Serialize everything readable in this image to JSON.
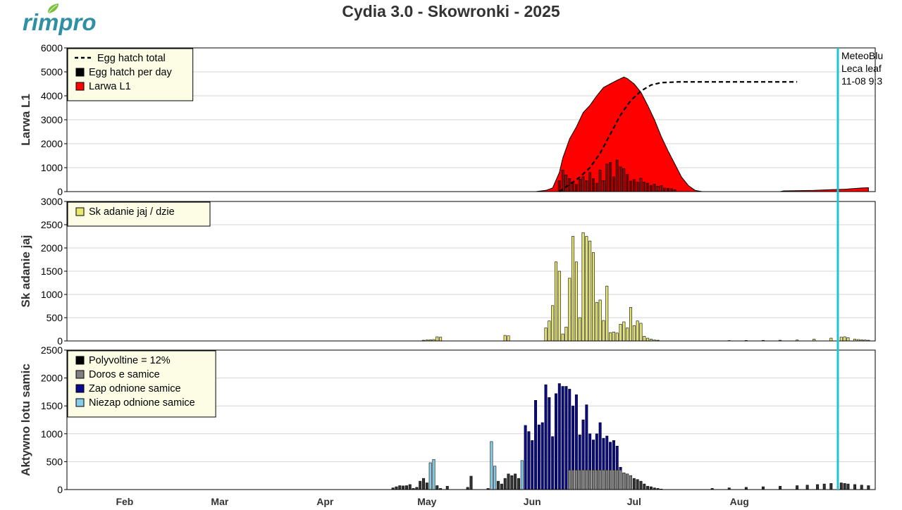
{
  "logo": {
    "text": "rimpro",
    "icon": "leaf-icon",
    "color": "#2f8fa3",
    "leaf_color": "#7cbf3a"
  },
  "title": "Cydia 3.0 - Skowronki - 2025",
  "annotation": {
    "lines": [
      "MeteoBlu",
      "Leca leaf",
      "11-08 9:3"
    ]
  },
  "months": [
    "Feb",
    "Mar",
    "Apr",
    "May",
    "Jun",
    "Jul",
    "Aug"
  ],
  "colors": {
    "larwa": "#ff0000",
    "hatch": "#000000",
    "egglaying": "#e8e870",
    "poly": "#000000",
    "doros": "#808080",
    "zap": "#0a0a8c",
    "niezap": "#87ceeb",
    "now_line": "#21c4d0",
    "grid": "#d4d4d4",
    "legend_bg": "#fdfde6"
  },
  "chart_data": [
    {
      "type": "area",
      "ylabel": "Larwa L1",
      "ylim": [
        0,
        6000
      ],
      "yticks": [
        0,
        1000,
        2000,
        3000,
        4000,
        5000,
        6000
      ],
      "legend": [
        {
          "label": "Egg hatch total",
          "style": "dashed-line"
        },
        {
          "label": "Egg hatch per day",
          "style": "box",
          "color": "#000000"
        },
        {
          "label": "Larwa L1",
          "style": "box",
          "color": "#ff0000"
        }
      ],
      "larwa_l1": [
        [
          153,
          0
        ],
        [
          156,
          50
        ],
        [
          158,
          150
        ],
        [
          160,
          800
        ],
        [
          161,
          1400
        ],
        [
          163,
          2200
        ],
        [
          165,
          2700
        ],
        [
          167,
          3300
        ],
        [
          169,
          3600
        ],
        [
          171,
          4000
        ],
        [
          173,
          4350
        ],
        [
          175,
          4500
        ],
        [
          177,
          4650
        ],
        [
          179,
          4780
        ],
        [
          180,
          4720
        ],
        [
          182,
          4500
        ],
        [
          184,
          4150
        ],
        [
          186,
          3600
        ],
        [
          188,
          3000
        ],
        [
          190,
          2300
        ],
        [
          192,
          1700
        ],
        [
          194,
          1150
        ],
        [
          196,
          600
        ],
        [
          198,
          250
        ],
        [
          200,
          50
        ],
        [
          202,
          0
        ],
        [
          225,
          0
        ],
        [
          226,
          30
        ],
        [
          235,
          50
        ],
        [
          240,
          80
        ],
        [
          244,
          100
        ],
        [
          249,
          150
        ],
        [
          251,
          160
        ]
      ],
      "egg_hatch_total": [
        [
          160,
          0
        ],
        [
          163,
          300
        ],
        [
          166,
          600
        ],
        [
          169,
          1000
        ],
        [
          172,
          1600
        ],
        [
          175,
          2400
        ],
        [
          178,
          3200
        ],
        [
          181,
          3800
        ],
        [
          184,
          4200
        ],
        [
          187,
          4450
        ],
        [
          190,
          4550
        ],
        [
          195,
          4580
        ],
        [
          230,
          4580
        ]
      ],
      "egg_hatch_per_day": [
        [
          160,
          450
        ],
        [
          161,
          900
        ],
        [
          162,
          700
        ],
        [
          163,
          550
        ],
        [
          164,
          400
        ],
        [
          165,
          300
        ],
        [
          166,
          520
        ],
        [
          167,
          620
        ],
        [
          168,
          450
        ],
        [
          169,
          800
        ],
        [
          170,
          540
        ],
        [
          171,
          350
        ],
        [
          172,
          900
        ],
        [
          173,
          460
        ],
        [
          174,
          1150
        ],
        [
          175,
          1220
        ],
        [
          176,
          620
        ],
        [
          177,
          1320
        ],
        [
          178,
          1030
        ],
        [
          179,
          960
        ],
        [
          180,
          720
        ],
        [
          181,
          440
        ],
        [
          182,
          500
        ],
        [
          183,
          390
        ],
        [
          184,
          560
        ],
        [
          185,
          400
        ],
        [
          186,
          350
        ],
        [
          187,
          260
        ],
        [
          188,
          310
        ],
        [
          189,
          220
        ],
        [
          190,
          250
        ],
        [
          191,
          150
        ],
        [
          192,
          140
        ],
        [
          193,
          120
        ],
        [
          194,
          80
        ]
      ]
    },
    {
      "type": "bar",
      "ylabel": "Sk adanie jaj",
      "ylim": [
        0,
        3000
      ],
      "yticks": [
        0,
        500,
        1000,
        1500,
        2000,
        2500,
        3000
      ],
      "legend": [
        {
          "label": "Sk adanie jaj / dzie",
          "style": "box",
          "color": "#e8e870"
        }
      ],
      "values": [
        [
          120,
          15
        ],
        [
          121,
          20
        ],
        [
          122,
          25
        ],
        [
          123,
          30
        ],
        [
          124,
          90
        ],
        [
          125,
          80
        ],
        [
          144,
          120
        ],
        [
          145,
          110
        ],
        [
          156,
          280
        ],
        [
          157,
          430
        ],
        [
          158,
          760
        ],
        [
          159,
          1700
        ],
        [
          160,
          1500
        ],
        [
          161,
          150
        ],
        [
          162,
          300
        ],
        [
          163,
          1350
        ],
        [
          164,
          2250
        ],
        [
          165,
          1700
        ],
        [
          166,
          500
        ],
        [
          167,
          2330
        ],
        [
          168,
          2250
        ],
        [
          169,
          2150
        ],
        [
          170,
          1900
        ],
        [
          171,
          830
        ],
        [
          172,
          880
        ],
        [
          173,
          440
        ],
        [
          174,
          1180
        ],
        [
          175,
          180
        ],
        [
          176,
          190
        ],
        [
          177,
          170
        ],
        [
          178,
          360
        ],
        [
          179,
          410
        ],
        [
          180,
          280
        ],
        [
          181,
          720
        ],
        [
          182,
          330
        ],
        [
          183,
          430
        ],
        [
          184,
          380
        ],
        [
          185,
          100
        ],
        [
          186,
          60
        ],
        [
          187,
          40
        ],
        [
          188,
          20
        ],
        [
          189,
          15
        ],
        [
          210,
          8
        ],
        [
          215,
          10
        ],
        [
          220,
          12
        ],
        [
          225,
          15
        ],
        [
          230,
          20
        ],
        [
          235,
          40
        ],
        [
          240,
          60
        ],
        [
          243,
          80
        ],
        [
          244,
          90
        ],
        [
          245,
          70
        ],
        [
          247,
          40
        ],
        [
          248,
          30
        ],
        [
          249,
          25
        ],
        [
          250,
          20
        ],
        [
          251,
          15
        ]
      ]
    },
    {
      "type": "bar",
      "ylabel": "Aktywno  lotu samic",
      "ylim": [
        0,
        2500
      ],
      "yticks": [
        0,
        500,
        1000,
        1500,
        2000,
        2500
      ],
      "legend": [
        {
          "label": "Polyvoltine = 12%",
          "style": "box",
          "color": "#000000"
        },
        {
          "label": "Doros e samice",
          "style": "box",
          "color": "#808080"
        },
        {
          "label": "Zap odnione samice",
          "style": "box",
          "color": "#0a0a8c"
        },
        {
          "label": "Niezap odnione samice",
          "style": "box",
          "color": "#87ceeb"
        }
      ],
      "values": [
        [
          111,
          30
        ],
        [
          112,
          50
        ],
        [
          113,
          70
        ],
        [
          114,
          65
        ],
        [
          115,
          70
        ],
        [
          116,
          90
        ],
        [
          117,
          20
        ],
        [
          118,
          40
        ],
        [
          119,
          150
        ],
        [
          120,
          200
        ],
        [
          121,
          120
        ],
        [
          122,
          480
        ],
        [
          123,
          540
        ],
        [
          124,
          70
        ],
        [
          125,
          20
        ],
        [
          127,
          60
        ],
        [
          133,
          40
        ],
        [
          134,
          240
        ],
        [
          139,
          20
        ],
        [
          140,
          860
        ],
        [
          141,
          420
        ],
        [
          142,
          150
        ],
        [
          143,
          100
        ],
        [
          144,
          200
        ],
        [
          145,
          280
        ],
        [
          146,
          250
        ],
        [
          147,
          280
        ],
        [
          148,
          200
        ],
        [
          149,
          520
        ],
        [
          150,
          1150
        ],
        [
          151,
          1040
        ],
        [
          152,
          880
        ],
        [
          153,
          1600
        ],
        [
          154,
          1160
        ],
        [
          155,
          1200
        ],
        [
          156,
          1880
        ],
        [
          157,
          1650
        ],
        [
          158,
          950
        ],
        [
          159,
          1720
        ],
        [
          160,
          1900
        ],
        [
          161,
          1850
        ],
        [
          162,
          1850
        ],
        [
          163,
          1800
        ],
        [
          164,
          1500
        ],
        [
          165,
          1700
        ],
        [
          166,
          980
        ],
        [
          167,
          1250
        ],
        [
          168,
          1520
        ],
        [
          169,
          1000
        ],
        [
          170,
          890
        ],
        [
          171,
          1000
        ],
        [
          172,
          1200
        ],
        [
          173,
          920
        ],
        [
          174,
          960
        ],
        [
          175,
          850
        ],
        [
          176,
          880
        ],
        [
          177,
          780
        ],
        [
          178,
          400
        ],
        [
          179,
          300
        ],
        [
          180,
          280
        ],
        [
          181,
          250
        ],
        [
          182,
          200
        ],
        [
          183,
          180
        ],
        [
          184,
          150
        ],
        [
          185,
          100
        ],
        [
          186,
          60
        ],
        [
          187,
          50
        ],
        [
          188,
          30
        ],
        [
          189,
          20
        ],
        [
          190,
          10
        ],
        [
          205,
          20
        ],
        [
          210,
          30
        ],
        [
          215,
          40
        ],
        [
          220,
          50
        ],
        [
          225,
          60
        ],
        [
          230,
          70
        ],
        [
          233,
          80
        ],
        [
          236,
          90
        ],
        [
          238,
          100
        ],
        [
          240,
          110
        ],
        [
          243,
          120
        ],
        [
          244,
          110
        ],
        [
          245,
          100
        ],
        [
          247,
          90
        ],
        [
          249,
          80
        ],
        [
          251,
          70
        ]
      ]
    }
  ]
}
